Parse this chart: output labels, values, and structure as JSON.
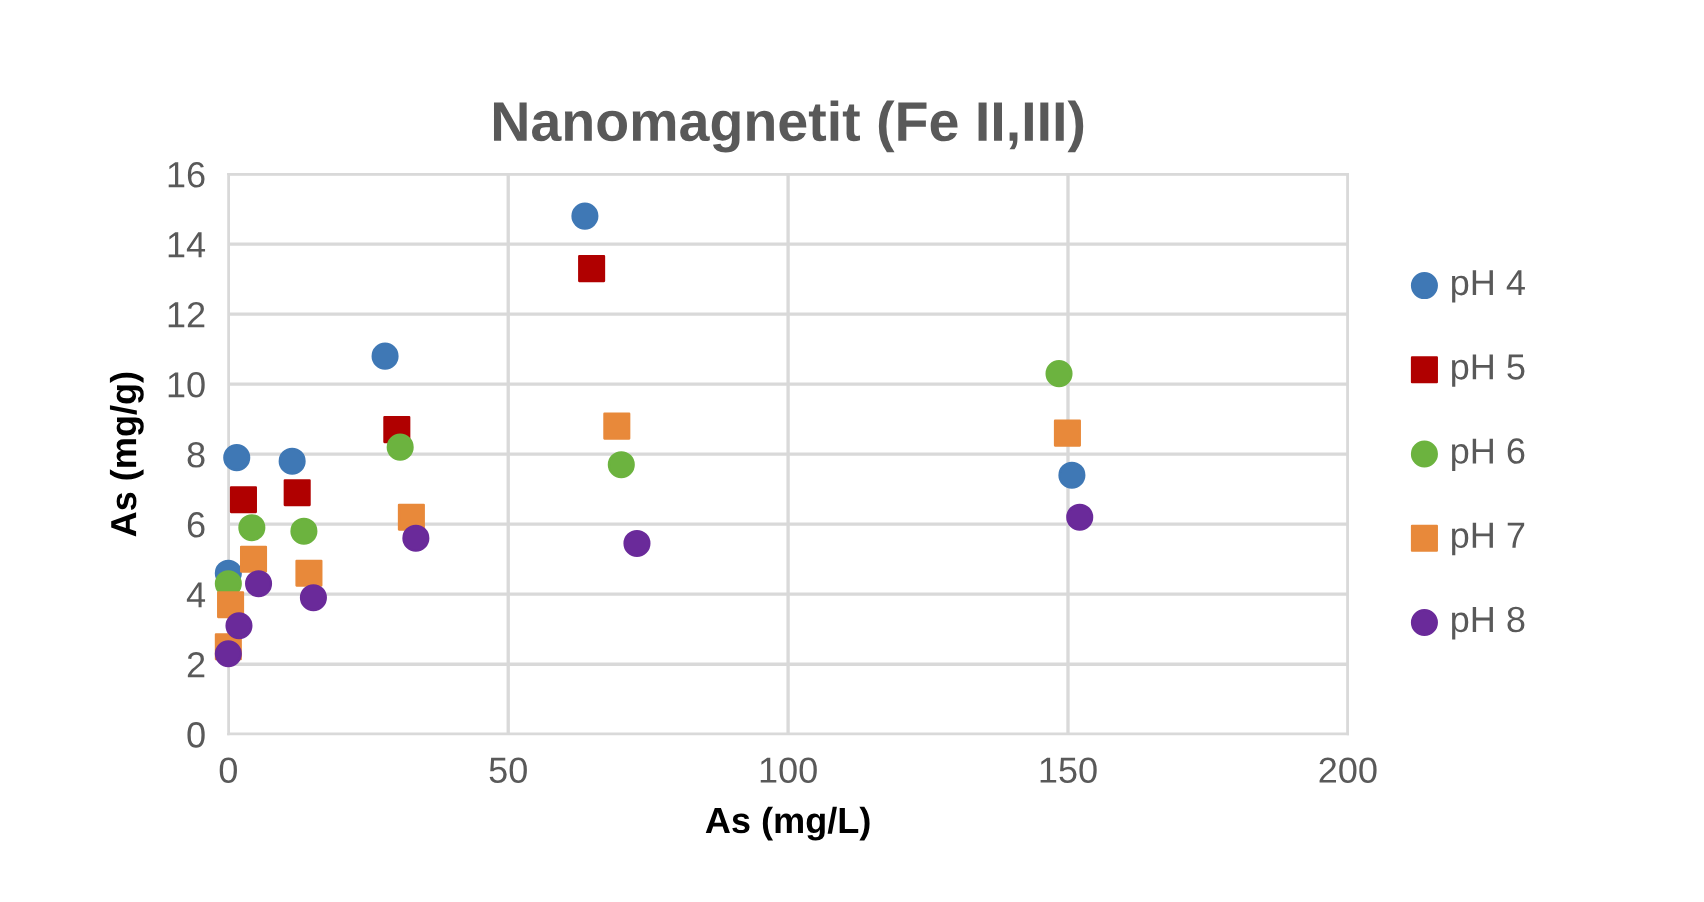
{
  "chart_data": {
    "type": "scatter",
    "title": "Nanomagnetit (Fe II,III)",
    "xlabel": "As (mg/L)",
    "ylabel": "As (mg/g)",
    "xlim": [
      0,
      200
    ],
    "xticks": [
      0,
      50,
      100,
      150,
      200
    ],
    "ylim": [
      0,
      16
    ],
    "yticks": [
      0,
      2,
      4,
      6,
      8,
      10,
      12,
      14,
      16
    ],
    "grid": true,
    "legend": "right",
    "series": [
      {
        "name": "pH 4",
        "color": "#3f78b5",
        "marker": "circle",
        "x": [
          0,
          1.5,
          11.4,
          28,
          63.7,
          150.7
        ],
        "values": [
          4.6,
          7.9,
          7.8,
          10.8,
          14.8,
          7.4
        ]
      },
      {
        "name": "pH 5",
        "color": "#b00000",
        "marker": "square",
        "x": [
          2.7,
          12.3,
          30.1,
          64.9
        ],
        "values": [
          6.7,
          6.9,
          8.7,
          13.3
        ]
      },
      {
        "name": "pH 6",
        "color": "#6cb33f",
        "marker": "circle",
        "x": [
          0,
          4.2,
          13.5,
          30.7,
          70.2,
          148.4
        ],
        "values": [
          4.3,
          5.9,
          5.8,
          8.2,
          7.7,
          10.3
        ]
      },
      {
        "name": "pH 7",
        "color": "#e8893a",
        "marker": "square",
        "x": [
          0,
          0.4,
          4.5,
          14.4,
          32.7,
          69.4,
          149.9
        ],
        "values": [
          2.5,
          3.7,
          5.0,
          4.6,
          6.2,
          8.8,
          8.6
        ]
      },
      {
        "name": "pH 8",
        "color": "#6a2a9a",
        "marker": "circle",
        "x": [
          0,
          1.9,
          5.4,
          15.2,
          33.5,
          73,
          152.1
        ],
        "values": [
          2.3,
          3.1,
          4.3,
          3.9,
          5.6,
          5.45,
          6.2
        ]
      }
    ]
  }
}
